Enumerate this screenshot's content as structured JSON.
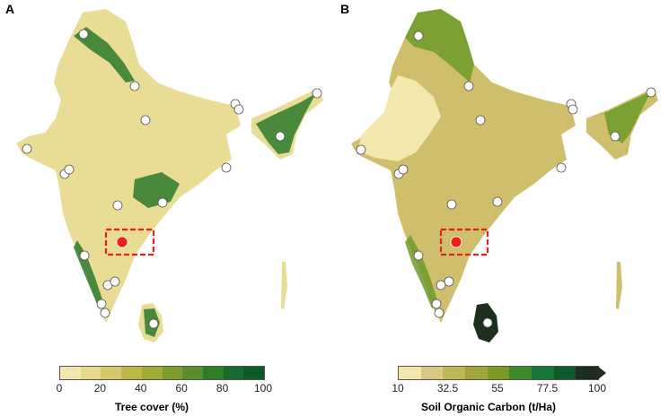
{
  "panel_a": {
    "letter": "A",
    "legend_title": "Tree cover (%)",
    "legend_ticks": [
      "0",
      "20",
      "40",
      "60",
      "80",
      "100"
    ],
    "legend_colors": [
      "#f2e7ad",
      "#e6d88e",
      "#d4c86a",
      "#bdb845",
      "#a0ac33",
      "#7b9d2b",
      "#5a8e2a",
      "#2f7d2a",
      "#176b2c",
      "#0c5a26"
    ],
    "base_color": "#e9dc95",
    "forest_color": "#2c7a2b"
  },
  "panel_b": {
    "letter": "B",
    "legend_title": "Soil Organic Carbon (t/Ha)",
    "legend_ticks": [
      "10",
      "32.5",
      "55",
      "77.5",
      "100"
    ],
    "legend_colors": [
      "#f2e7ad",
      "#d9c882",
      "#c0b858",
      "#a2a63a",
      "#7a9a22",
      "#3f8a2a",
      "#167434",
      "#0c5a2a",
      "#1e2e1e"
    ],
    "base_color": "#cfbf6c",
    "forest_color": "#6e9a2c"
  },
  "study_site_marker": {
    "fill": "#e8201a",
    "box_stroke": "#e8201a"
  },
  "sample_points_color": "#ffffff"
}
